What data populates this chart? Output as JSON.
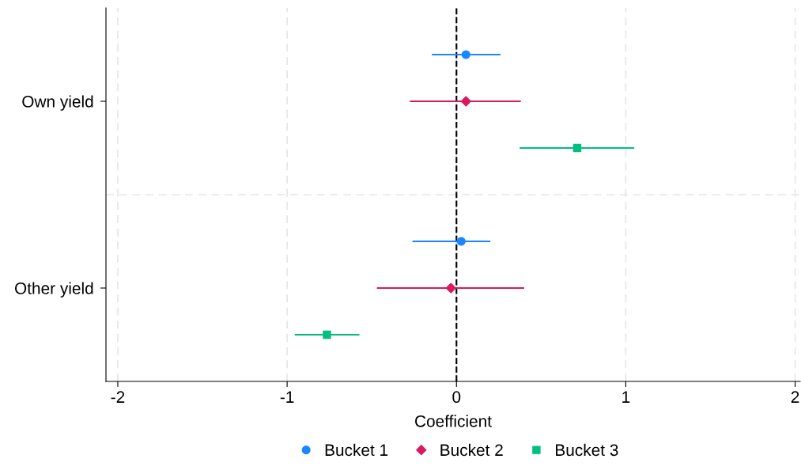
{
  "chart_data": {
    "type": "scatter",
    "orientation": "horizontal",
    "xlabel": "Coefficient",
    "categories": [
      "Own yield",
      "Other yield"
    ],
    "xlim": [
      -2.07,
      2.03
    ],
    "xticks": [
      -2,
      -1,
      0,
      1,
      2
    ],
    "grid": true,
    "legend": "bottom",
    "ref_lines": [
      {
        "axis": "x",
        "value": 0,
        "color": "#000000",
        "line_style": "dashed"
      }
    ],
    "series": [
      {
        "name": "Bucket 1",
        "color": "#1a87ff",
        "marker": "circle",
        "values": [
          0.056,
          0.028
        ],
        "errors": [
          [
            -0.145,
            0.26
          ],
          [
            -0.26,
            0.2
          ]
        ]
      },
      {
        "name": "Bucket 2",
        "color": "#d81b60",
        "marker": "diamond",
        "values": [
          0.056,
          -0.033
        ],
        "errors": [
          [
            -0.275,
            0.38
          ],
          [
            -0.47,
            0.4
          ]
        ]
      },
      {
        "name": "Bucket 3",
        "color": "#00bf7f",
        "marker": "square",
        "values": [
          0.713,
          -0.765
        ],
        "errors": [
          [
            0.373,
            1.05
          ],
          [
            -0.955,
            -0.573
          ]
        ]
      }
    ]
  }
}
